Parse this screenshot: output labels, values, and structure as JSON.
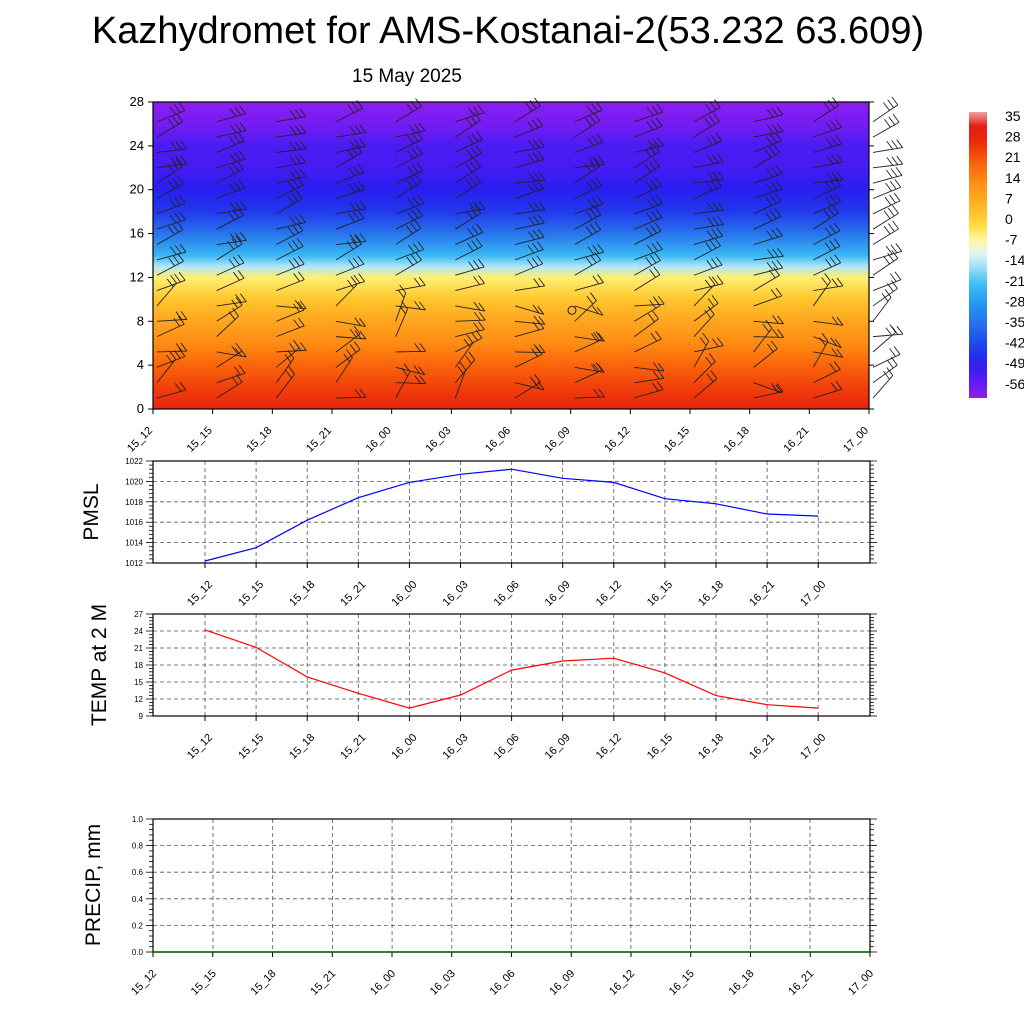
{
  "header": {
    "title": "Kazhydromet for AMS-Kostanai-2(53.232 63.609)",
    "date": "15 May 2025"
  },
  "chart_data": [
    {
      "type": "heatmap",
      "title": "",
      "x_categories": [
        "15_12",
        "15_15",
        "15_18",
        "15_21",
        "16_00",
        "16_03",
        "16_06",
        "16_09",
        "16_12",
        "16_15",
        "16_18",
        "16_21",
        "17_00"
      ],
      "y_ticks": [
        0,
        4,
        8,
        12,
        16,
        20,
        24,
        28
      ],
      "ylim": [
        0,
        28
      ],
      "colorbar_labels": [
        "35",
        "28",
        "21",
        "14",
        "7",
        "0",
        "-7",
        "-14",
        "-21",
        "-28",
        "-35",
        "-42",
        "-49",
        "-56"
      ],
      "colorbar_range": [
        -60,
        38
      ],
      "temperature_by_level": [
        {
          "y": 0,
          "value": 30
        },
        {
          "y": 2,
          "value": 25
        },
        {
          "y": 4,
          "value": 20
        },
        {
          "y": 6,
          "value": 14
        },
        {
          "y": 8,
          "value": 9
        },
        {
          "y": 10,
          "value": 3
        },
        {
          "y": 12,
          "value": -4
        },
        {
          "y": 13,
          "value": -14
        },
        {
          "y": 14,
          "value": -22
        },
        {
          "y": 16,
          "value": -34
        },
        {
          "y": 18,
          "value": -44
        },
        {
          "y": 20,
          "value": -48
        },
        {
          "y": 22,
          "value": -51
        },
        {
          "y": 24,
          "value": -52
        },
        {
          "y": 26,
          "value": -57
        },
        {
          "y": 28,
          "value": -60
        }
      ],
      "wind_barbs": "present",
      "colors": {
        "hot": "#e8200a",
        "warm": "#ff9a1a",
        "neutral": "#ffffd0",
        "cold": "#2050f0",
        "coldest": "#8a1cf0"
      }
    },
    {
      "type": "line",
      "ylabel": "PMSL",
      "x": [
        "15_12",
        "15_15",
        "15_18",
        "15_21",
        "16_00",
        "16_03",
        "16_06",
        "16_09",
        "16_12",
        "16_15",
        "16_18",
        "16_21",
        "17_00"
      ],
      "values": [
        1012.2,
        1013.5,
        1016.2,
        1018.4,
        1019.9,
        1020.7,
        1021.2,
        1020.3,
        1019.9,
        1018.3,
        1017.8,
        1016.8,
        1016.6
      ],
      "ylim": [
        1012,
        1022
      ],
      "yticks": [
        1012,
        1014,
        1016,
        1018,
        1020,
        1022
      ],
      "color": "#0000ff",
      "grid": true
    },
    {
      "type": "line",
      "ylabel": "TEMP at 2 M",
      "x": [
        "15_12",
        "15_15",
        "15_18",
        "15_21",
        "16_00",
        "16_03",
        "16_06",
        "16_09",
        "16_12",
        "16_15",
        "16_18",
        "16_21",
        "17_00"
      ],
      "values": [
        24.2,
        21.1,
        15.9,
        13.0,
        10.4,
        12.7,
        17.1,
        18.7,
        19.2,
        16.6,
        12.6,
        11.0,
        10.4
      ],
      "ylim": [
        9,
        27
      ],
      "yticks": [
        9,
        12,
        15,
        18,
        21,
        24,
        27
      ],
      "color": "#ff0000",
      "grid": true
    },
    {
      "type": "line",
      "ylabel": "PRECIP, mm",
      "x": [
        "15_12",
        "15_15",
        "15_18",
        "15_21",
        "16_00",
        "16_03",
        "16_06",
        "16_09",
        "16_12",
        "16_15",
        "16_18",
        "16_21",
        "17_00"
      ],
      "values": [
        0,
        0,
        0,
        0,
        0,
        0,
        0,
        0,
        0,
        0,
        0,
        0,
        0
      ],
      "ylim": [
        0.0,
        1.0
      ],
      "yticks": [
        "0.0",
        "0.2",
        "0.4",
        "0.6",
        "0.8",
        "1.0"
      ],
      "color": "#006400",
      "grid": true
    }
  ]
}
